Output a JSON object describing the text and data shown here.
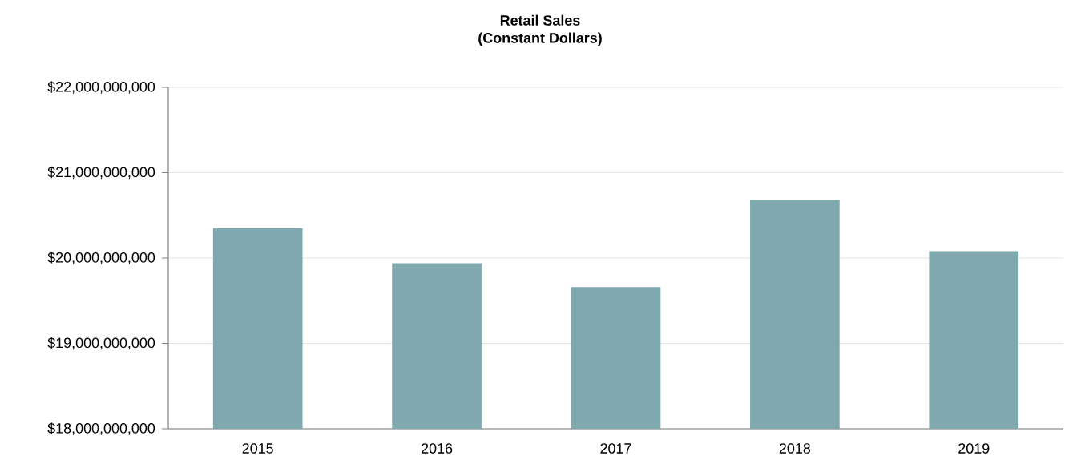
{
  "chart_data": {
    "type": "bar",
    "title": "Retail Sales",
    "subtitle": "(Constant Dollars)",
    "categories": [
      "2015",
      "2016",
      "2017",
      "2018",
      "2019"
    ],
    "values": [
      20350000000,
      19940000000,
      19660000000,
      20680000000,
      20080000000
    ],
    "color": "#80a9af",
    "ylim": [
      18000000000,
      22000000000
    ],
    "yticks": [
      {
        "value": 18000000000,
        "label": "$18,000,000,000"
      },
      {
        "value": 19000000000,
        "label": "$19,000,000,000"
      },
      {
        "value": 20000000000,
        "label": "$20,000,000,000"
      },
      {
        "value": 21000000000,
        "label": "$21,000,000,000"
      },
      {
        "value": 22000000000,
        "label": "$22,000,000,000"
      }
    ],
    "grid": "y"
  }
}
